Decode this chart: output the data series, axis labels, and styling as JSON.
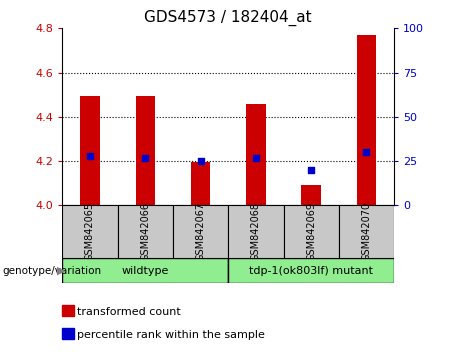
{
  "title": "GDS4573 / 182404_at",
  "samples": [
    "GSM842065",
    "GSM842066",
    "GSM842067",
    "GSM842068",
    "GSM842069",
    "GSM842070"
  ],
  "transformed_count": [
    4.495,
    4.495,
    4.195,
    4.46,
    4.09,
    4.77
  ],
  "percentile_rank": [
    28,
    27,
    25,
    27,
    20,
    30
  ],
  "ylim_left": [
    4.0,
    4.8
  ],
  "ylim_right": [
    0,
    100
  ],
  "yticks_left": [
    4.0,
    4.2,
    4.4,
    4.6,
    4.8
  ],
  "yticks_right": [
    0,
    25,
    50,
    75,
    100
  ],
  "group_ranges": [
    [
      0,
      2
    ],
    [
      3,
      5
    ]
  ],
  "group_labels": [
    "wildtype",
    "tdp-1(ok803lf) mutant"
  ],
  "group_color": "#90EE90",
  "bar_color": "#CC0000",
  "dot_color": "#0000CC",
  "bar_width": 0.35,
  "bar_bottom": 4.0,
  "ax_label_color_left": "#CC0000",
  "ax_label_color_right": "#0000CC",
  "legend_items": [
    {
      "label": "transformed count",
      "color": "#CC0000"
    },
    {
      "label": "percentile rank within the sample",
      "color": "#0000CC"
    }
  ],
  "genotype_label": "genotype/variation",
  "sample_box_color": "#C8C8C8",
  "gridline_ticks": [
    4.2,
    4.4,
    4.6
  ]
}
